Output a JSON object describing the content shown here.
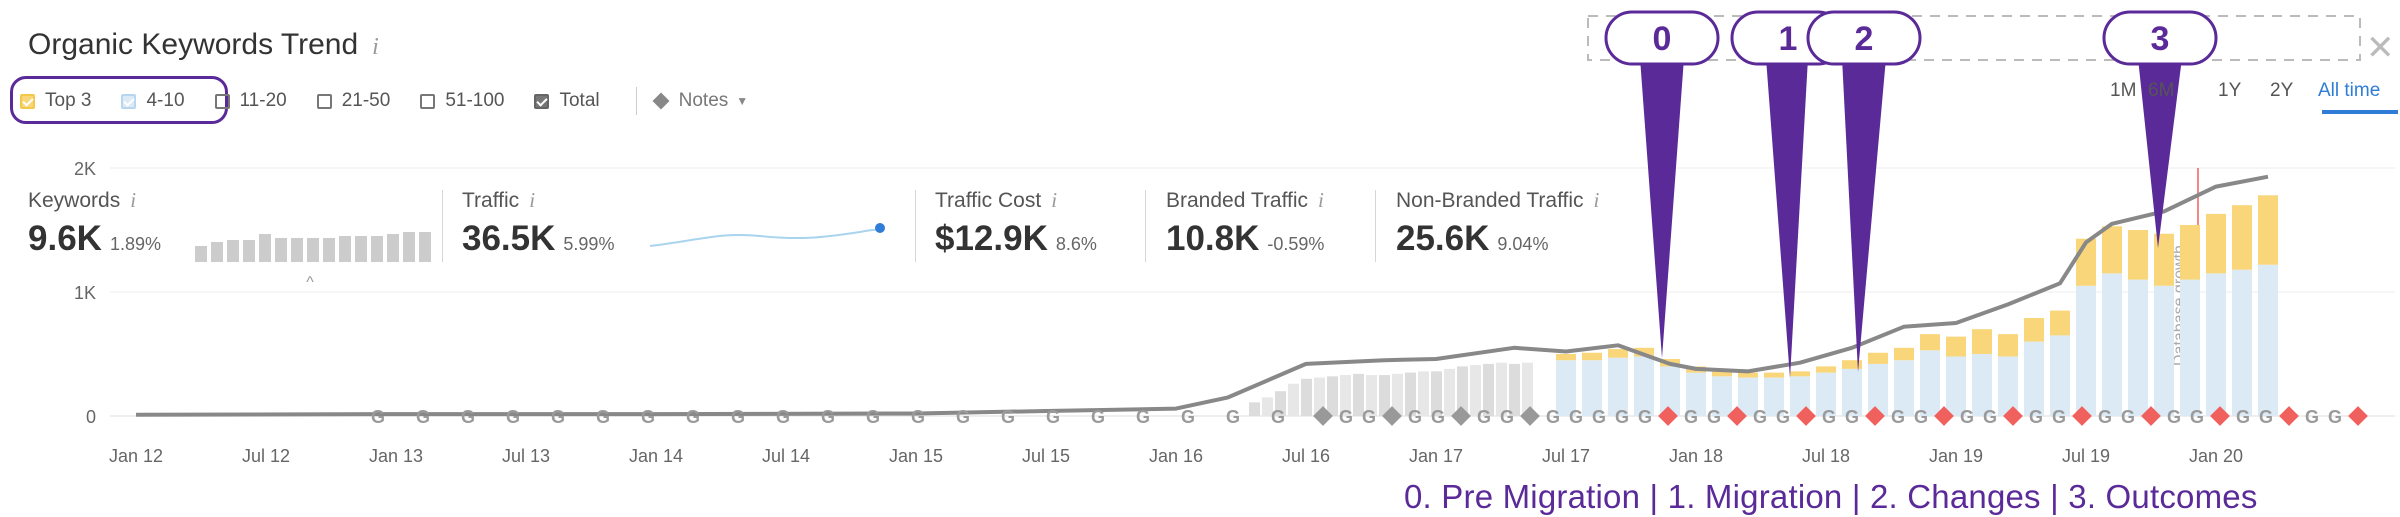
{
  "header": {
    "title": "Organic Keywords Trend",
    "info_icon": "i"
  },
  "filters": {
    "items": [
      {
        "label": "Top 3",
        "checked": true,
        "color": "#f9d67a"
      },
      {
        "label": "4-10",
        "checked": true,
        "color": "#dceaf6"
      },
      {
        "label": "11-20",
        "checked": false
      },
      {
        "label": "21-50",
        "checked": false
      },
      {
        "label": "51-100",
        "checked": false
      },
      {
        "label": "Total",
        "checked": true
      }
    ],
    "notes_label": "Notes"
  },
  "ranges": [
    "1M",
    "6M",
    "1Y",
    "2Y",
    "All time"
  ],
  "active_range": "All time",
  "metrics": [
    {
      "label": "Keywords",
      "value": "9.6K",
      "change": "1.89%"
    },
    {
      "label": "Traffic",
      "value": "36.5K",
      "change": "5.99%"
    },
    {
      "label": "Traffic Cost",
      "value": "$12.9K",
      "change": "8.6%"
    },
    {
      "label": "Branded Traffic",
      "value": "10.8K",
      "change": "-0.59%"
    },
    {
      "label": "Non-Branded Traffic",
      "value": "25.6K",
      "change": "9.04%"
    }
  ],
  "callouts": [
    "0",
    "1",
    "2",
    "3"
  ],
  "legend_text": "0. Pre Migration  |  1. Migration  |  2. Changes  |  3. Outcomes",
  "colors": {
    "top3": "#f9d67a",
    "r4_10": "#dceaf6",
    "total_line": "#888888",
    "google_marker": "#9a9a9a",
    "note_marker": "#f0605d",
    "accent": "#5b2a99",
    "link": "#2f7dd6"
  },
  "chart_data": {
    "type": "bar",
    "title": "Organic Keywords Trend",
    "y_ticks": [
      "0",
      "1K",
      "2K"
    ],
    "ylim": [
      0,
      2000
    ],
    "x_ticks": [
      "Jan 12",
      "Jul 12",
      "Jan 13",
      "Jul 13",
      "Jan 14",
      "Jul 14",
      "Jan 15",
      "Jul 15",
      "Jan 16",
      "Jul 16",
      "Jan 17",
      "Jul 17",
      "Jan 18",
      "Jul 18",
      "Jan 19",
      "Jul 19",
      "Jan 20"
    ],
    "annotation": "Database growth",
    "series": [
      {
        "name": "Top 3",
        "x": [
          2017.5,
          2017.6,
          2017.7,
          2017.8,
          2017.9,
          2018.0,
          2018.1,
          2018.2,
          2018.3,
          2018.4,
          2018.5,
          2018.6,
          2018.7,
          2018.8,
          2018.9,
          2019.0,
          2019.1,
          2019.2,
          2019.3,
          2019.4,
          2019.5,
          2019.6,
          2019.7,
          2019.8,
          2019.9,
          2020.0,
          2020.1,
          2020.2
        ],
        "values": [
          50,
          60,
          70,
          70,
          60,
          50,
          40,
          40,
          40,
          40,
          50,
          70,
          90,
          100,
          130,
          160,
          200,
          180,
          190,
          200,
          380,
          380,
          400,
          420,
          440,
          480,
          520,
          560
        ]
      },
      {
        "name": "4-10",
        "x": [
          2017.5,
          2017.6,
          2017.7,
          2017.8,
          2017.9,
          2018.0,
          2018.1,
          2018.2,
          2018.3,
          2018.4,
          2018.5,
          2018.6,
          2018.7,
          2018.8,
          2018.9,
          2019.0,
          2019.1,
          2019.2,
          2019.3,
          2019.4,
          2019.5,
          2019.6,
          2019.7,
          2019.8,
          2019.9,
          2020.0,
          2020.1,
          2020.2
        ],
        "values": [
          450,
          450,
          470,
          480,
          400,
          350,
          320,
          310,
          310,
          320,
          350,
          380,
          420,
          450,
          530,
          480,
          500,
          480,
          600,
          650,
          1050,
          1150,
          1100,
          1050,
          1100,
          1150,
          1180,
          1220
        ]
      }
    ],
    "total": {
      "name": "Total",
      "x": [
        2012.0,
        2013.0,
        2014.0,
        2015.0,
        2015.5,
        2016.0,
        2016.2,
        2016.5,
        2016.8,
        2017.0,
        2017.3,
        2017.5,
        2017.7,
        2017.9,
        2018.0,
        2018.2,
        2018.4,
        2018.6,
        2018.8,
        2019.0,
        2019.2,
        2019.4,
        2019.5,
        2019.6,
        2019.7,
        2019.8,
        2020.0,
        2020.2
      ],
      "values": [
        10,
        15,
        15,
        20,
        40,
        60,
        150,
        420,
        450,
        460,
        550,
        520,
        570,
        420,
        380,
        360,
        430,
        550,
        720,
        750,
        900,
        1070,
        1400,
        1550,
        1600,
        1650,
        1850,
        1930
      ]
    }
  }
}
